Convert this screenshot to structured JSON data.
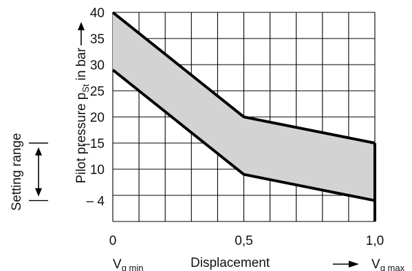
{
  "chart_data": {
    "type": "area",
    "xlabel": "Displacement",
    "ylabel_main": "Pilot pressure p",
    "ylabel_sub": "St",
    "ylabel_suffix": " in bar",
    "xlim": [
      0,
      1.0
    ],
    "ylim": [
      0,
      40
    ],
    "grid": true,
    "y_ticks": [
      {
        "value": 40,
        "label": "40"
      },
      {
        "value": 35,
        "label": "35"
      },
      {
        "value": 30,
        "label": "30"
      },
      {
        "value": 25,
        "label": "25"
      },
      {
        "value": 20,
        "label": "20"
      },
      {
        "value": 15,
        "label": "–15"
      },
      {
        "value": 10,
        "label": "10"
      },
      {
        "value": 4,
        "label": "–  4"
      }
    ],
    "x_ticks": [
      {
        "value": 0,
        "label": "0"
      },
      {
        "value": 0.5,
        "label": "0,5"
      },
      {
        "value": 1.0,
        "label": "1,0"
      }
    ],
    "x_end_labels": {
      "left_main": "V",
      "left_sub": "g min",
      "right_main": "V",
      "right_sub": "g max"
    },
    "upper_boundary": {
      "x": [
        0,
        0.5,
        1.0
      ],
      "y": [
        40,
        20,
        15
      ]
    },
    "lower_boundary": {
      "x": [
        0,
        0.5,
        1.0
      ],
      "y": [
        29,
        9,
        4
      ]
    },
    "setting_range": {
      "label": "Setting range",
      "from": 4,
      "to": 15
    },
    "fill_color": "#d3d3d3",
    "line_color": "#000000"
  }
}
